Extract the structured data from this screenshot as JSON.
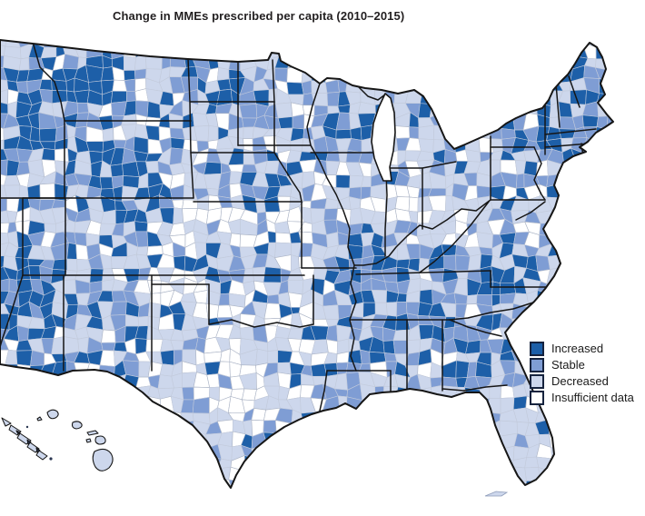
{
  "title": "Change in MMEs prescribed per capita (2010–2015)",
  "legend": {
    "items": [
      {
        "label": "Increased",
        "color": "#1d5fa8"
      },
      {
        "label": "Stable",
        "color": "#7f9dd4"
      },
      {
        "label": "Decreased",
        "color": "#cdd7ec"
      },
      {
        "label": "Insufficient data",
        "color": "#ffffff"
      }
    ],
    "swatch_border": "#16233e"
  },
  "map": {
    "kind": "us-county-choropleth",
    "regions_shown": "Contiguous United States (west coast cropped), Hawaii, Aleutian Islands",
    "colors": {
      "increased": "#1d5fa8",
      "stable": "#7f9dd4",
      "decreased": "#cdd7ec",
      "insufficient": "#ffffff",
      "state_border": "#161616",
      "county_border": "#aab6cc",
      "background": "#ffffff"
    }
  }
}
